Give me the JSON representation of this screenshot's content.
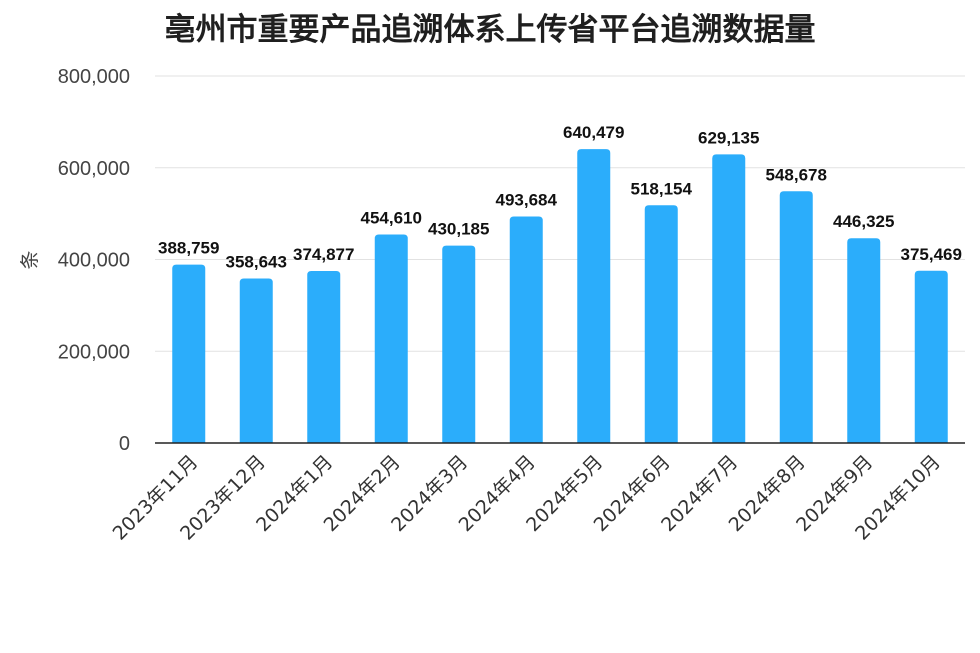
{
  "chart_data": {
    "type": "bar",
    "title": "亳州市重要产品追溯体系上传省平台追溯数据量",
    "xlabel": "",
    "ylabel": "条",
    "categories": [
      "2023年11月",
      "2023年12月",
      "2024年1月",
      "2024年2月",
      "2024年3月",
      "2024年4月",
      "2024年5月",
      "2024年6月",
      "2024年7月",
      "2024年8月",
      "2024年9月",
      "2024年10月"
    ],
    "values": [
      388759,
      358643,
      374877,
      454610,
      430185,
      493684,
      640479,
      518154,
      629135,
      548678,
      446325,
      375469
    ],
    "data_labels": [
      "388,759",
      "358,643",
      "374,877",
      "454,610",
      "430,185",
      "493,684",
      "640,479",
      "518,154",
      "629,135",
      "548,678",
      "446,325",
      "375,469"
    ],
    "ylim": [
      0,
      800000
    ],
    "yticks": [
      0,
      200000,
      400000,
      600000,
      800000
    ],
    "ytick_labels": [
      "0",
      "200,000",
      "400,000",
      "600,000",
      "800,000"
    ],
    "grid": true,
    "legend": "none",
    "colors": {
      "bar": "#2BADFB",
      "grid": "#e2e2e2",
      "axis": "#222222"
    }
  }
}
